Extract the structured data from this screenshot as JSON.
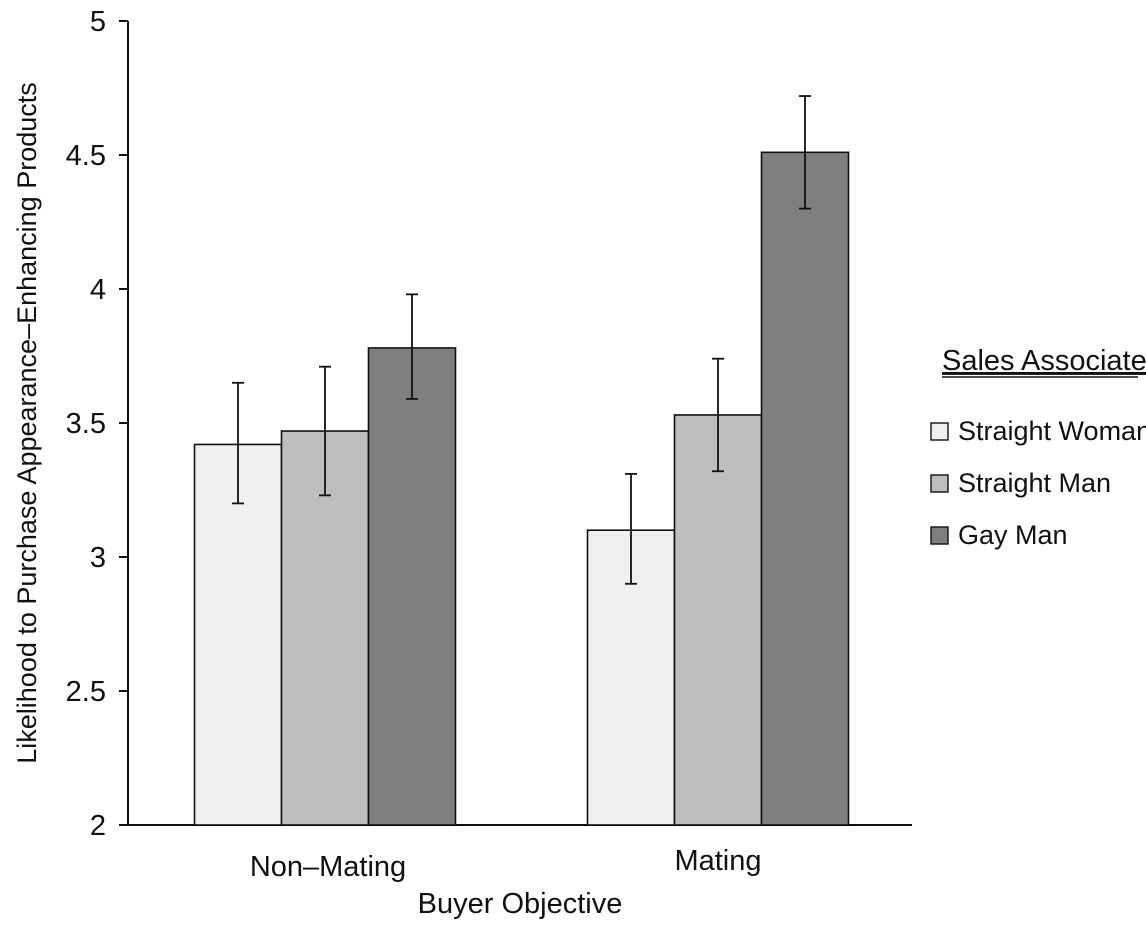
{
  "chart_data": {
    "type": "bar",
    "xlabel": "Buyer Objective",
    "ylabel": "Likelihood to Purchase Appearance–Enhancing Products",
    "categories": [
      "Non–Mating",
      "Mating"
    ],
    "ylim": [
      2,
      5
    ],
    "yticks": [
      "2",
      "2.5",
      "3",
      "3.5",
      "4",
      "4.5",
      "5"
    ],
    "grid": false,
    "legend": {
      "title": "Sales Associate",
      "placement": "right"
    },
    "series": [
      {
        "name": "Straight Woman",
        "color": "#f0f0f0",
        "values": [
          3.42,
          3.1
        ],
        "error_low": [
          3.2,
          2.9
        ],
        "error_high": [
          3.65,
          3.31
        ]
      },
      {
        "name": "Straight Man",
        "color": "#bebebe",
        "values": [
          3.47,
          3.53
        ],
        "error_low": [
          3.23,
          3.32
        ],
        "error_high": [
          3.71,
          3.74
        ]
      },
      {
        "name": "Gay Man",
        "color": "#7f7f7f",
        "values": [
          3.78,
          4.51
        ],
        "error_low": [
          3.59,
          4.3
        ],
        "error_high": [
          3.98,
          4.72
        ]
      }
    ]
  }
}
